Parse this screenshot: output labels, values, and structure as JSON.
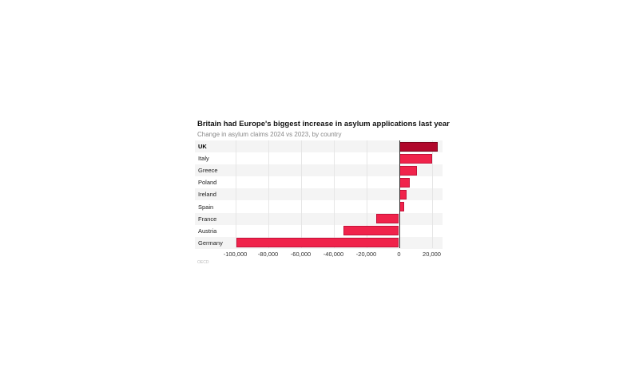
{
  "title": "Britain had Europe's biggest increase in asylum applications last year",
  "subtitle": "Change in asylum claims 2024 vs 2023, by country",
  "source": "OECD",
  "colors": {
    "highlight": "#b0062a",
    "bar": "#f0234b",
    "row_alt": "#f4f4f4",
    "grid": "#e6e6e6"
  },
  "chart_data": {
    "type": "bar",
    "orientation": "horizontal",
    "title": "Britain had Europe's biggest increase in asylum applications last year",
    "subtitle": "Change in asylum claims 2024 vs 2023, by country",
    "xlabel": "",
    "ylabel": "",
    "categories": [
      "UK",
      "Italy",
      "Greece",
      "Poland",
      "Ireland",
      "Spain",
      "France",
      "Austria",
      "Germany"
    ],
    "values": [
      23500,
      20000,
      11000,
      6500,
      4800,
      3100,
      -13700,
      -33700,
      -99500
    ],
    "highlight": "UK",
    "xlim": [
      -100000,
      25000
    ],
    "xticks": [
      "-100,000",
      "-80,000",
      "-60,000",
      "-40,000",
      "-20,000",
      "0",
      "20,000"
    ],
    "grid": true,
    "legend": null,
    "source": "OECD"
  },
  "axis": {
    "ticks": [
      {
        "label": "-100,000",
        "value": -100000
      },
      {
        "label": "-80,000",
        "value": -80000
      },
      {
        "label": "-60,000",
        "value": -60000
      },
      {
        "label": "-40,000",
        "value": -40000
      },
      {
        "label": "-20,000",
        "value": -20000
      },
      {
        "label": "0",
        "value": 0
      },
      {
        "label": "20,000",
        "value": 20000
      }
    ]
  },
  "rows": [
    {
      "label": "UK",
      "value": 23500,
      "highlight": true
    },
    {
      "label": "Italy",
      "value": 20000
    },
    {
      "label": "Greece",
      "value": 11000
    },
    {
      "label": "Poland",
      "value": 6500
    },
    {
      "label": "Ireland",
      "value": 4800
    },
    {
      "label": "Spain",
      "value": 3100
    },
    {
      "label": "France",
      "value": -13700
    },
    {
      "label": "Austria",
      "value": -33700
    },
    {
      "label": "Germany",
      "value": -99500
    }
  ]
}
